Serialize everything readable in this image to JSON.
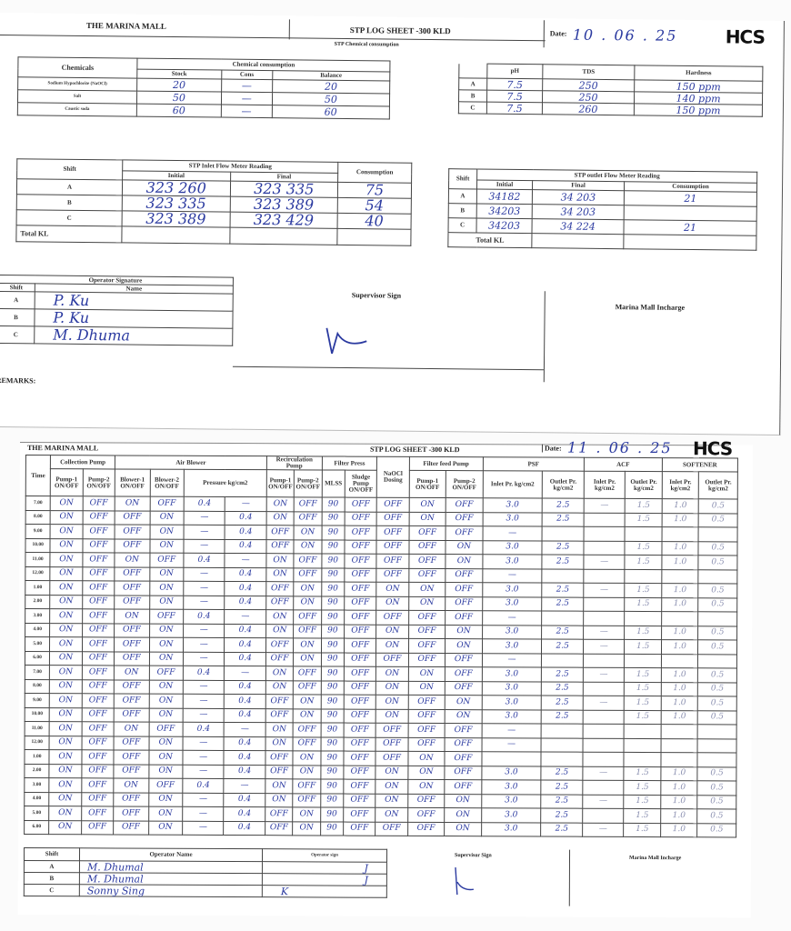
{
  "sheet1": {
    "org": "THE MARINA MALL",
    "title": "STP LOG SHEET -300 KLD",
    "date_label": "Date:",
    "date_value": "10 . 06 . 25",
    "logo": "HCS",
    "chem_section": "STP Chemical consumption",
    "chem": {
      "head_chemicals": "Chemicals",
      "head_group": "Chemical consumption",
      "head_stock": "Stock",
      "head_cons": "Cons",
      "head_balance": "Balance",
      "rows": [
        {
          "name": "Sodium Hypochlorite (NaOCl)",
          "stock": "20",
          "cons": "—",
          "balance": "20"
        },
        {
          "name": "Salt",
          "stock": "50",
          "cons": "—",
          "balance": "50"
        },
        {
          "name": "Caustic soda",
          "stock": "60",
          "cons": "—",
          "balance": "60"
        }
      ]
    },
    "quality": {
      "head_ph": "pH",
      "head_tds": "TDS",
      "head_hardness": "Hardness",
      "rows": [
        {
          "shift": "A",
          "ph": "7.5",
          "tds": "250",
          "hardness": "150 ppm"
        },
        {
          "shift": "B",
          "ph": "7.5",
          "tds": "250",
          "hardness": "140 ppm"
        },
        {
          "shift": "C",
          "ph": "7.5",
          "tds": "260",
          "hardness": "150 ppm"
        }
      ]
    },
    "inlet": {
      "head_shift": "Shift",
      "head_group": "STP Inlet Flow Meter Reading",
      "head_initial": "Initial",
      "head_final": "Final",
      "head_consumption": "Consumption",
      "rows": [
        {
          "shift": "A",
          "initial": "323 260",
          "final": "323 335",
          "consumption": "75"
        },
        {
          "shift": "B",
          "initial": "323 335",
          "final": "323 389",
          "consumption": "54"
        },
        {
          "shift": "C",
          "initial": "323 389",
          "final": "323 429",
          "consumption": "40"
        }
      ],
      "total_label": "Total KL"
    },
    "outlet": {
      "head_shift": "Shift",
      "head_group": "STP outlet Flow Meter Reading",
      "head_initial": "Initial",
      "head_final": "Final",
      "head_consumption": "Consumption",
      "rows": [
        {
          "shift": "A",
          "initial": "34182",
          "final": "34 203",
          "consumption": "21"
        },
        {
          "shift": "B",
          "initial": "34203",
          "final": "34 203",
          "consumption": ""
        },
        {
          "shift": "C",
          "initial": "34203",
          "final": "34 224",
          "consumption": "21"
        }
      ],
      "total_label": "Total KL"
    },
    "operator": {
      "head": "Operator Signature",
      "head_shift": "Shift",
      "head_name": "Name",
      "rows": [
        {
          "shift": "A",
          "name": "P. Ku"
        },
        {
          "shift": "B",
          "name": "P. Ku"
        },
        {
          "shift": "C",
          "name": "M. Dhuma"
        }
      ]
    },
    "supervisor_label": "Supervisor Sign",
    "incharge_label": "Marina Mall Incharge",
    "remarks_label": "REMARKS:"
  },
  "sheet2": {
    "org": "THE MARINA MALL",
    "title": "STP LOG SHEET -300 KLD",
    "date_label": "Date:",
    "date_value": "11 . 06 . 25",
    "logo": "HCS",
    "groups": {
      "time": "Time",
      "collection": "Collection Pump",
      "blower": "Air Blower",
      "recirc": "Recirculation Pump",
      "filter_press": "Filter Press",
      "naocl": "NaOCl Dosing",
      "filter_feed": "Filter feed Pump",
      "psf": "PSF",
      "acf": "ACF",
      "softener": "SOFTENER"
    },
    "subheads": {
      "cp1": "Pump-1 ON/OFF",
      "cp2": "Pump-2 ON/OFF",
      "b1": "Blower-1 ON/OFF",
      "b2": "Blower-2 ON/OFF",
      "pressure": "Pressure kg/cm2",
      "rp1": "Pump-1 ON/OFF",
      "rp2": "Pump-2 ON/OFF",
      "mlss": "MLSS",
      "sludge": "Sludge Pump ON/OFF",
      "ff1": "Pump-1 ON/OFF",
      "ff2": "Pump-2 ON/OFF",
      "psf_in": "Inlet Pr. kg/cm2",
      "psf_out": "Outlet Pr. kg/cm2",
      "acf_in": "Inlet Pr. kg/cm2",
      "acf_out": "Outlet Pr. kg/cm2",
      "sof_in": "Inlet Pr. kg/cm2",
      "sof_out": "Outlet Pr. kg/cm2"
    },
    "rows": [
      [
        "7.00",
        "ON",
        "OFF",
        "ON",
        "OFF",
        "0.4",
        "—",
        "ON",
        "OFF",
        "90",
        "OFF",
        "OFF",
        "ON",
        "OFF",
        "3.0",
        "2.5",
        "—",
        "1.5",
        "1.0",
        "0.5"
      ],
      [
        "8.00",
        "ON",
        "OFF",
        "OFF",
        "ON",
        "—",
        "0.4",
        "ON",
        "OFF",
        "90",
        "OFF",
        "OFF",
        "ON",
        "OFF",
        "3.0",
        "2.5",
        "",
        "1.5",
        "1.0",
        "0.5"
      ],
      [
        "9.00",
        "ON",
        "OFF",
        "OFF",
        "ON",
        "—",
        "0.4",
        "OFF",
        "ON",
        "90",
        "OFF",
        "OFF",
        "OFF",
        "OFF",
        "—",
        "",
        "",
        "",
        "",
        ""
      ],
      [
        "10.00",
        "ON",
        "OFF",
        "OFF",
        "ON",
        "—",
        "0.4",
        "OFF",
        "ON",
        "90",
        "OFF",
        "OFF",
        "OFF",
        "ON",
        "3.0",
        "2.5",
        "",
        "1.5",
        "1.0",
        "0.5"
      ],
      [
        "11.00",
        "ON",
        "OFF",
        "ON",
        "OFF",
        "0.4",
        "—",
        "ON",
        "OFF",
        "90",
        "OFF",
        "OFF",
        "OFF",
        "ON",
        "3.0",
        "2.5",
        "—",
        "1.5",
        "1.0",
        "0.5"
      ],
      [
        "12.00",
        "ON",
        "OFF",
        "OFF",
        "ON",
        "—",
        "0.4",
        "ON",
        "OFF",
        "90",
        "OFF",
        "OFF",
        "OFF",
        "OFF",
        "—",
        "",
        "",
        "",
        "",
        ""
      ],
      [
        "1.00",
        "ON",
        "OFF",
        "OFF",
        "ON",
        "—",
        "0.4",
        "OFF",
        "ON",
        "90",
        "OFF",
        "ON",
        "ON",
        "OFF",
        "3.0",
        "2.5",
        "—",
        "1.5",
        "1.0",
        "0.5"
      ],
      [
        "2.00",
        "ON",
        "OFF",
        "OFF",
        "ON",
        "—",
        "0.4",
        "OFF",
        "ON",
        "90",
        "OFF",
        "ON",
        "ON",
        "OFF",
        "3.0",
        "2.5",
        "",
        "1.5",
        "1.0",
        "0.5"
      ],
      [
        "3.00",
        "ON",
        "OFF",
        "ON",
        "OFF",
        "0.4",
        "—",
        "ON",
        "OFF",
        "90",
        "OFF",
        "OFF",
        "OFF",
        "OFF",
        "—",
        "",
        "",
        "",
        "",
        ""
      ],
      [
        "4.00",
        "ON",
        "OFF",
        "OFF",
        "ON",
        "—",
        "0.4",
        "ON",
        "OFF",
        "90",
        "OFF",
        "ON",
        "OFF",
        "ON",
        "3.0",
        "2.5",
        "—",
        "1.5",
        "1.0",
        "0.5"
      ],
      [
        "5.00",
        "ON",
        "OFF",
        "OFF",
        "ON",
        "—",
        "0.4",
        "OFF",
        "ON",
        "90",
        "OFF",
        "ON",
        "OFF",
        "ON",
        "3.0",
        "2.5",
        "—",
        "1.5",
        "1.0",
        "0.5"
      ],
      [
        "6.00",
        "ON",
        "OFF",
        "OFF",
        "ON",
        "—",
        "0.4",
        "OFF",
        "ON",
        "90",
        "OFF",
        "OFF",
        "OFF",
        "OFF",
        "—",
        "",
        "",
        "",
        "",
        ""
      ],
      [
        "7.00",
        "ON",
        "OFF",
        "ON",
        "OFF",
        "0.4",
        "—",
        "ON",
        "OFF",
        "90",
        "OFF",
        "ON",
        "ON",
        "OFF",
        "3.0",
        "2.5",
        "—",
        "1.5",
        "1.0",
        "0.5"
      ],
      [
        "8.00",
        "ON",
        "OFF",
        "OFF",
        "ON",
        "—",
        "0.4",
        "ON",
        "OFF",
        "90",
        "OFF",
        "ON",
        "ON",
        "OFF",
        "3.0",
        "2.5",
        "",
        "1.5",
        "1.0",
        "0.5"
      ],
      [
        "9.00",
        "ON",
        "OFF",
        "OFF",
        "ON",
        "—",
        "0.4",
        "OFF",
        "ON",
        "90",
        "OFF",
        "ON",
        "OFF",
        "ON",
        "3.0",
        "2.5",
        "—",
        "1.5",
        "1.0",
        "0.5"
      ],
      [
        "10.00",
        "ON",
        "OFF",
        "OFF",
        "ON",
        "—",
        "0.4",
        "OFF",
        "ON",
        "90",
        "OFF",
        "ON",
        "OFF",
        "ON",
        "3.0",
        "2.5",
        "",
        "1.5",
        "1.0",
        "0.5"
      ],
      [
        "11.00",
        "ON",
        "OFF",
        "ON",
        "OFF",
        "0.4",
        "—",
        "ON",
        "OFF",
        "90",
        "OFF",
        "OFF",
        "OFF",
        "OFF",
        "—",
        "",
        "",
        "",
        "",
        ""
      ],
      [
        "12.00",
        "ON",
        "OFF",
        "OFF",
        "ON",
        "—",
        "0.4",
        "ON",
        "OFF",
        "90",
        "OFF",
        "OFF",
        "OFF",
        "OFF",
        "—",
        "",
        "",
        "",
        "",
        ""
      ],
      [
        "1.00",
        "ON",
        "OFF",
        "OFF",
        "ON",
        "—",
        "0.4",
        "OFF",
        "ON",
        "90",
        "OFF",
        "OFF",
        "ON",
        "OFF",
        "",
        "",
        "",
        "",
        "",
        ""
      ],
      [
        "2.00",
        "ON",
        "OFF",
        "OFF",
        "ON",
        "—",
        "0.4",
        "OFF",
        "ON",
        "90",
        "OFF",
        "ON",
        "ON",
        "OFF",
        "3.0",
        "2.5",
        "—",
        "1.5",
        "1.0",
        "0.5"
      ],
      [
        "3.00",
        "ON",
        "OFF",
        "ON",
        "OFF",
        "0.4",
        "—",
        "ON",
        "OFF",
        "90",
        "OFF",
        "ON",
        "ON",
        "OFF",
        "3.0",
        "2.5",
        "",
        "1.5",
        "1.0",
        "0.5"
      ],
      [
        "4.00",
        "ON",
        "OFF",
        "OFF",
        "ON",
        "—",
        "0.4",
        "ON",
        "OFF",
        "90",
        "OFF",
        "ON",
        "OFF",
        "ON",
        "3.0",
        "2.5",
        "—",
        "1.5",
        "1.0",
        "0.5"
      ],
      [
        "5.00",
        "ON",
        "OFF",
        "OFF",
        "ON",
        "—",
        "0.4",
        "OFF",
        "ON",
        "90",
        "OFF",
        "ON",
        "OFF",
        "ON",
        "3.0",
        "2.5",
        "",
        "1.5",
        "1.0",
        "0.5"
      ],
      [
        "6.00",
        "ON",
        "OFF",
        "OFF",
        "ON",
        "—",
        "0.4",
        "OFF",
        "ON",
        "90",
        "OFF",
        "OFF",
        "OFF",
        "ON",
        "3.0",
        "2.5",
        "—",
        "1.5",
        "1.0",
        "0.5"
      ]
    ],
    "footer": {
      "head_shift": "Shift",
      "head_operator": "Operator Name",
      "head_sign": "Operator sign",
      "rows": [
        {
          "shift": "A",
          "name": "M. Dhumal",
          "sign": "J"
        },
        {
          "shift": "B",
          "name": "M. Dhumal",
          "sign": "J"
        },
        {
          "shift": "C",
          "name": "Sonny Sing",
          "sign": "K"
        }
      ],
      "supervisor_label": "Supervisor Sign",
      "incharge_label": "Marina Mall Incharge"
    }
  }
}
